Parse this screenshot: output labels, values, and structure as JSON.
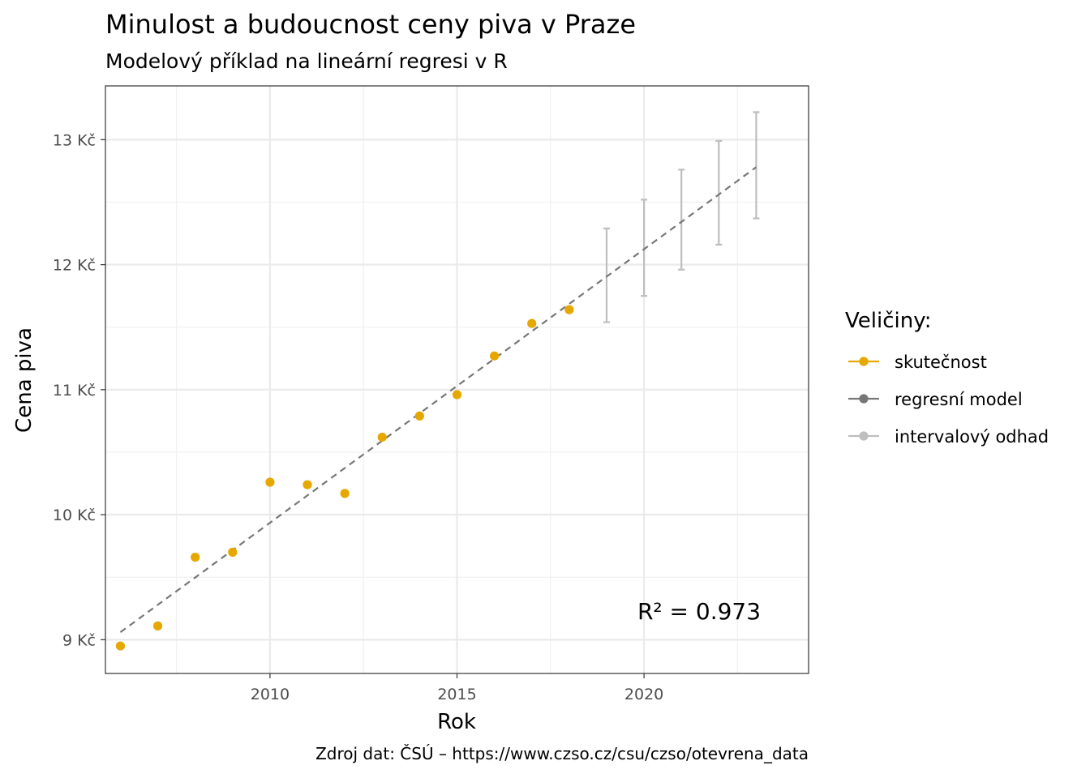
{
  "chart_data": {
    "type": "scatter",
    "title": "Minulost a budoucnost ceny piva v Praze",
    "subtitle": "Modelový příklad na lineární regresi v R",
    "xlabel": "Rok",
    "ylabel": "Cena piva",
    "caption": "Zdroj dat: ČSÚ – https://www.czso.cz/csu/czso/otevrena_data",
    "xlim": [
      2005.6,
      2024.4
    ],
    "ylim": [
      8.73,
      13.43
    ],
    "x_ticks": [
      2010,
      2015,
      2020
    ],
    "x_tick_labels": [
      "2010",
      "2015",
      "2020"
    ],
    "y_ticks": [
      9,
      10,
      11,
      12,
      13
    ],
    "y_tick_labels": [
      "9 Kč",
      "10 Kč",
      "11 Kč",
      "12 Kč",
      "13 Kč"
    ],
    "grid": true,
    "legend": {
      "title": "Veličiny:",
      "position": "right",
      "items": [
        {
          "label": "skutečnost",
          "color": "#E6A800"
        },
        {
          "label": "regresní model",
          "color": "#777777"
        },
        {
          "label": "intervalový odhad",
          "color": "#BEBEBE"
        }
      ]
    },
    "series": [
      {
        "name": "skutečnost",
        "type": "scatter",
        "color": "#E6A800",
        "x": [
          2006,
          2007,
          2008,
          2009,
          2010,
          2011,
          2012,
          2013,
          2014,
          2015,
          2016,
          2017,
          2018
        ],
        "y": [
          8.95,
          9.11,
          9.66,
          9.7,
          10.26,
          10.24,
          10.17,
          10.62,
          10.79,
          10.96,
          11.27,
          11.53,
          11.64
        ]
      },
      {
        "name": "regresní model",
        "type": "line",
        "style": "dashed",
        "color": "#777777",
        "x": [
          2006,
          2023
        ],
        "y": [
          9.06,
          12.78
        ]
      },
      {
        "name": "intervalový odhad",
        "type": "errorbar",
        "color": "#BEBEBE",
        "x": [
          2019,
          2020,
          2021,
          2022,
          2023
        ],
        "lower": [
          11.54,
          11.75,
          11.96,
          12.16,
          12.37
        ],
        "upper": [
          12.29,
          12.52,
          12.76,
          12.99,
          13.22
        ]
      }
    ],
    "annotations": [
      {
        "text": "R²  =  0.973",
        "x": 2021.5,
        "y": 9.24
      }
    ]
  }
}
